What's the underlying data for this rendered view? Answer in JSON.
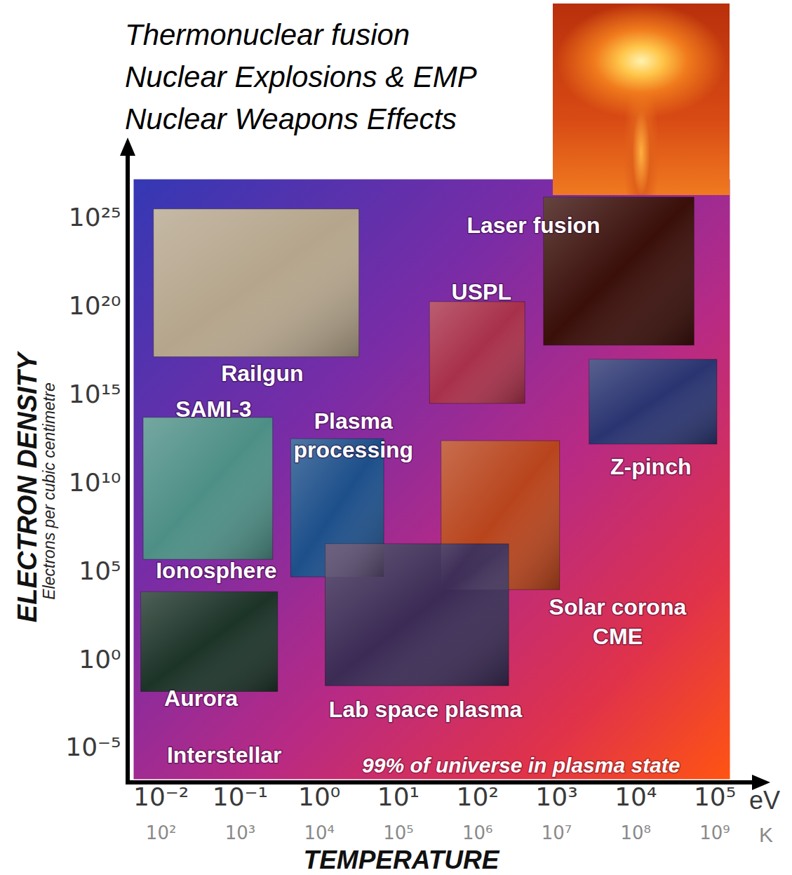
{
  "chart_data": {
    "type": "region",
    "title": [
      "Thermonuclear fusion",
      "Nuclear Explosions & EMP",
      "Nuclear Weapons Effects"
    ],
    "x_label": "TEMPERATURE",
    "x_unit": "eV",
    "x2_unit": "K",
    "y_label": "ELECTRON DENSITY",
    "y_label_note": "Electrons per cubic centimetre",
    "log": true,
    "grid": false,
    "xlim": [
      0.0045,
      155000
    ],
    "xticks": [
      {
        "value": 0.01,
        "label": "10⁻²"
      },
      {
        "value": 0.1,
        "label": "10⁻¹"
      },
      {
        "value": 1,
        "label": "10⁰"
      },
      {
        "value": 10,
        "label": "10¹"
      },
      {
        "value": 100,
        "label": "10²"
      },
      {
        "value": 1000,
        "label": "10³"
      },
      {
        "value": 10000,
        "label": "10⁴"
      },
      {
        "value": 100000,
        "label": "10⁵"
      }
    ],
    "x2lim": [
      45,
      1550000000
    ],
    "x2ticks": [
      {
        "value": 100,
        "label": "10²"
      },
      {
        "value": 1000,
        "label": "10³"
      },
      {
        "value": 10000,
        "label": "10⁴"
      },
      {
        "value": 100000,
        "label": "10⁵"
      },
      {
        "value": 1000000,
        "label": "10⁶"
      },
      {
        "value": 10000000,
        "label": "10⁷"
      },
      {
        "value": 100000000,
        "label": "10⁸"
      },
      {
        "value": 1000000000,
        "label": "10⁹"
      }
    ],
    "ylim": [
      1.7e-07,
      1.5e+27
    ],
    "yticks": [
      {
        "value": 1e-05,
        "label": "10⁻⁵"
      },
      {
        "value": 1,
        "label": "10⁰"
      },
      {
        "value": 100000,
        "label": "10⁵"
      },
      {
        "value": 10000000000.0,
        "label": "10¹⁰"
      },
      {
        "value": 1000000000000000.0,
        "label": "10¹⁵"
      },
      {
        "value": 1e+20,
        "label": "10²⁰"
      },
      {
        "value": 1e+25,
        "label": "10²⁵"
      }
    ],
    "items": [
      {
        "label": "Railgun",
        "x": 0.19,
        "y": 2e+16,
        "image": {
          "x1": 0.0081,
          "x2": 3.2,
          "y1": 1.3e+17,
          "y2": 3e+25,
          "color": "#b5a58c"
        }
      },
      {
        "label": "Laser fusion",
        "x": 510,
        "y": 4.8e+24,
        "image": {
          "x1": 690,
          "x2": 55000,
          "y1": 5.9e+17,
          "y2": 1.4e+26,
          "color": "#3a0f0a"
        }
      },
      {
        "label": "USPL",
        "x": 112,
        "y": 8e+20,
        "image": {
          "x1": 25,
          "x2": 400,
          "y1": 300000000000000.0,
          "y2": 1.7e+20,
          "color": "#a8304a"
        }
      },
      {
        "label": "Z-pinch",
        "x": 15500,
        "y": 105000000000.0,
        "image": {
          "x1": 2600,
          "x2": 107000,
          "y1": 1500000000000.0,
          "y2": 9.3e+16,
          "color": "#2a3470"
        }
      },
      {
        "label": "SAMI-3",
        "x": 0.046,
        "y": 190000000000000.0
      },
      {
        "label": "Plasma\nprocessing",
        "x": 2.7,
        "y": 6000000000000.0,
        "image": {
          "x1": 0.44,
          "x2": 6.6,
          "y1": 46000,
          "y2": 3000000000000.0,
          "color": "#1d4f8a"
        }
      },
      {
        "label": "Ionosphere",
        "x": 0.05,
        "y": 130000,
        "image": {
          "x1": 0.006,
          "x2": 0.26,
          "y1": 450000,
          "y2": 48000000000000.0,
          "color": "#4d8f86"
        }
      },
      {
        "label": "Solar corona\nCME",
        "x": 5900,
        "y": 170,
        "image": {
          "x1": 35,
          "x2": 1100,
          "y1": 8700,
          "y2": 2300000000000.0,
          "color": "#b8441c"
        }
      },
      {
        "label": "Aurora",
        "x": 0.032,
        "y": 0.008,
        "image": {
          "x1": 0.0056,
          "x2": 0.3,
          "y1": 0.015,
          "y2": 6600,
          "color": "#1c3328"
        }
      },
      {
        "label": "Lab space plasma",
        "x": 22,
        "y": 0.0019,
        "image": {
          "x1": 1.2,
          "x2": 250,
          "y1": 0.032,
          "y2": 3400000,
          "color": "#3b2b55"
        }
      },
      {
        "label": "Interstellar",
        "x": 0.063,
        "y": 5e-06
      }
    ],
    "note": {
      "text": "99% of universe in plasma state",
      "x": 355,
      "y": 1e-06
    }
  }
}
